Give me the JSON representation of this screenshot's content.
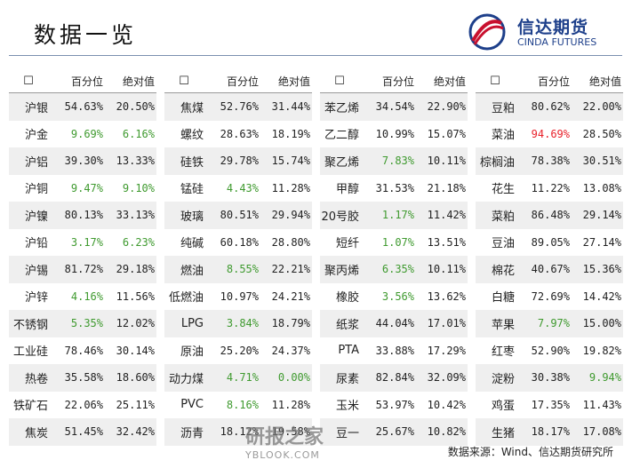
{
  "header": {
    "title": "数据一览",
    "logo_name": "信达期货",
    "logo_english": "CINDA FUTURES"
  },
  "colors": {
    "green": "#3f9a2f",
    "red": "#e8202a"
  },
  "tables": [
    {
      "header": [
        "☐",
        "百分位",
        "绝对值"
      ],
      "rows": [
        {
          "cells": [
            "沪银",
            "54.63%",
            "20.50%"
          ]
        },
        {
          "cells": [
            "沪金",
            "9.69%",
            "6.16%"
          ],
          "pct_color": "green",
          "abs_color": "green"
        },
        {
          "cells": [
            "沪铝",
            "39.30%",
            "13.33%"
          ]
        },
        {
          "cells": [
            "沪铜",
            "9.47%",
            "9.10%"
          ],
          "pct_color": "green",
          "abs_color": "green"
        },
        {
          "cells": [
            "沪镍",
            "80.13%",
            "33.13%"
          ]
        },
        {
          "cells": [
            "沪铅",
            "3.17%",
            "6.23%"
          ],
          "pct_color": "green",
          "abs_color": "green"
        },
        {
          "cells": [
            "沪锡",
            "81.72%",
            "29.18%"
          ]
        },
        {
          "cells": [
            "沪锌",
            "4.16%",
            "11.56%"
          ],
          "pct_color": "green"
        },
        {
          "cells": [
            "不锈钢",
            "5.35%",
            "12.02%"
          ],
          "pct_color": "green"
        },
        {
          "cells": [
            "工业硅",
            "78.46%",
            "30.14%"
          ]
        },
        {
          "cells": [
            "热卷",
            "35.58%",
            "18.60%"
          ]
        },
        {
          "cells": [
            "铁矿石",
            "22.06%",
            "25.11%"
          ]
        },
        {
          "cells": [
            "焦炭",
            "51.45%",
            "32.42%"
          ]
        }
      ]
    },
    {
      "header": [
        "☐",
        "百分位",
        "绝对值"
      ],
      "rows": [
        {
          "cells": [
            "焦煤",
            "52.76%",
            "31.44%"
          ]
        },
        {
          "cells": [
            "螺纹",
            "28.63%",
            "18.19%"
          ]
        },
        {
          "cells": [
            "硅铁",
            "29.78%",
            "15.74%"
          ]
        },
        {
          "cells": [
            "锰硅",
            "4.43%",
            "11.28%"
          ],
          "pct_color": "green"
        },
        {
          "cells": [
            "玻璃",
            "80.51%",
            "29.94%"
          ]
        },
        {
          "cells": [
            "纯碱",
            "60.18%",
            "28.80%"
          ]
        },
        {
          "cells": [
            "燃油",
            "8.55%",
            "22.21%"
          ],
          "pct_color": "green"
        },
        {
          "cells": [
            "低燃油",
            "10.97%",
            "24.21%"
          ]
        },
        {
          "cells": [
            "LPG",
            "3.84%",
            "18.79%"
          ],
          "pct_color": "green"
        },
        {
          "cells": [
            "原油",
            "25.20%",
            "24.37%"
          ]
        },
        {
          "cells": [
            "动力煤",
            "4.71%",
            "0.00%"
          ],
          "pct_color": "green",
          "abs_color": "green"
        },
        {
          "cells": [
            "PVC",
            "8.16%",
            "11.28%"
          ],
          "pct_color": "green"
        },
        {
          "cells": [
            "沥青",
            "18.12%",
            "19.58%"
          ]
        }
      ]
    },
    {
      "header": [
        "☐",
        "百分位",
        "绝对值"
      ],
      "rows": [
        {
          "cells": [
            "苯乙烯",
            "34.54%",
            "22.90%"
          ]
        },
        {
          "cells": [
            "乙二醇",
            "10.99%",
            "15.07%"
          ]
        },
        {
          "cells": [
            "聚乙烯",
            "7.83%",
            "10.11%"
          ],
          "pct_color": "green"
        },
        {
          "cells": [
            "甲醇",
            "31.53%",
            "21.18%"
          ]
        },
        {
          "cells": [
            "20号胶",
            "1.17%",
            "11.42%"
          ],
          "pct_color": "green"
        },
        {
          "cells": [
            "短纤",
            "1.07%",
            "13.51%"
          ],
          "pct_color": "green"
        },
        {
          "cells": [
            "聚丙烯",
            "6.35%",
            "10.11%"
          ],
          "pct_color": "green"
        },
        {
          "cells": [
            "橡胶",
            "3.56%",
            "13.62%"
          ],
          "pct_color": "green"
        },
        {
          "cells": [
            "纸浆",
            "44.04%",
            "17.01%"
          ]
        },
        {
          "cells": [
            "PTA",
            "33.88%",
            "17.29%"
          ]
        },
        {
          "cells": [
            "尿素",
            "82.84%",
            "32.09%"
          ]
        },
        {
          "cells": [
            "玉米",
            "53.97%",
            "10.42%"
          ]
        },
        {
          "cells": [
            "豆一",
            "25.67%",
            "10.82%"
          ]
        }
      ]
    },
    {
      "header": [
        "☐",
        "百分位",
        "绝对值"
      ],
      "rows": [
        {
          "cells": [
            "豆粕",
            "80.62%",
            "22.00%"
          ]
        },
        {
          "cells": [
            "菜油",
            "94.69%",
            "28.50%"
          ],
          "pct_color": "red"
        },
        {
          "cells": [
            "棕榈油",
            "78.38%",
            "30.51%"
          ]
        },
        {
          "cells": [
            "花生",
            "11.22%",
            "13.08%"
          ]
        },
        {
          "cells": [
            "菜粕",
            "86.48%",
            "29.14%"
          ]
        },
        {
          "cells": [
            "豆油",
            "89.05%",
            "27.14%"
          ]
        },
        {
          "cells": [
            "棉花",
            "40.67%",
            "15.36%"
          ]
        },
        {
          "cells": [
            "白糖",
            "72.69%",
            "14.42%"
          ]
        },
        {
          "cells": [
            "苹果",
            "7.97%",
            "15.00%"
          ],
          "pct_color": "green"
        },
        {
          "cells": [
            "红枣",
            "52.90%",
            "19.82%"
          ]
        },
        {
          "cells": [
            "淀粉",
            "30.38%",
            "9.94%"
          ],
          "abs_color": "green"
        },
        {
          "cells": [
            "鸡蛋",
            "17.35%",
            "11.43%"
          ]
        },
        {
          "cells": [
            "生猪",
            "18.17%",
            "17.08%"
          ]
        }
      ]
    }
  ],
  "footer": {
    "source": "数据来源：Wind、信达期货研究所"
  },
  "watermark": {
    "name": "研报之家",
    "url": "YBLOOK.COM"
  }
}
